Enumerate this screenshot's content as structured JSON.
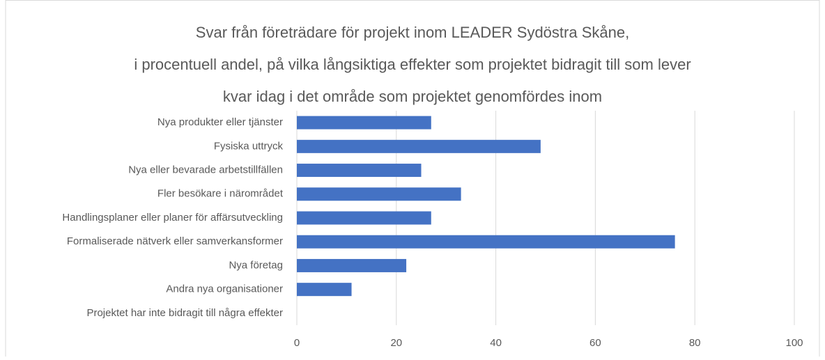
{
  "chart_data": {
    "type": "bar",
    "orientation": "horizontal",
    "title": [
      "Svar från företrädare för projekt inom LEADER Sydöstra Skåne,",
      "i procentuell andel, på vilka långsiktiga effekter som projektet bidragit till som lever",
      "kvar idag i det område som projektet genomfördes inom"
    ],
    "categories": [
      "Nya produkter eller tjänster",
      "Fysiska uttryck",
      "Nya eller bevarade arbetstillfällen",
      "Fler besökare i närområdet",
      "Handlingsplaner eller planer för affärsutveckling",
      "Formaliserade nätverk eller samverkansformer",
      "Nya företag",
      "Andra nya organisationer",
      "Projektet har inte bidragit till några effekter"
    ],
    "values": [
      27,
      49,
      25,
      33,
      27,
      76,
      22,
      11,
      0
    ],
    "color": "#4472c4",
    "xlim": [
      0,
      100
    ],
    "xticks": [
      0,
      20,
      40,
      60,
      80,
      100
    ],
    "grid": true
  }
}
